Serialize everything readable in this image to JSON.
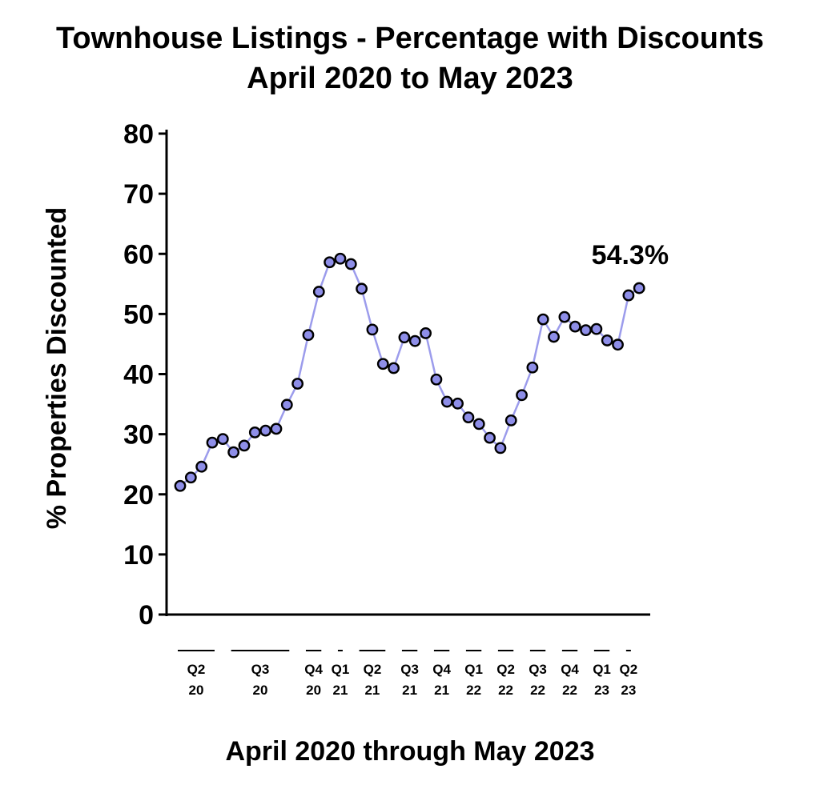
{
  "chart_data": {
    "type": "line",
    "title": [
      "Townhouse Listings - Percentage with Discounts",
      "April 2020 to May 2023"
    ],
    "ylabel": "% Properties Discounted",
    "xlabel": "April 2020 through May 2023",
    "ylim": [
      0,
      80
    ],
    "yticks": [
      "0",
      "10",
      "20",
      "30",
      "40",
      "50",
      "60",
      "70",
      "80"
    ],
    "grid": false,
    "legend": "none",
    "colors": {
      "line": "#9c9cec",
      "marker_fill": "#8e8ee8",
      "marker_edge": "#000000"
    },
    "quarters": [
      {
        "q": "Q2",
        "y": "20",
        "first": 0,
        "last": 3
      },
      {
        "q": "Q3",
        "y": "20",
        "first": 5,
        "last": 10
      },
      {
        "q": "Q4",
        "y": "20",
        "first": 12,
        "last": 13
      },
      {
        "q": "Q1",
        "y": "21",
        "first": 15,
        "last": 15
      },
      {
        "q": "Q2",
        "y": "21",
        "first": 17,
        "last": 19
      },
      {
        "q": "Q3",
        "y": "21",
        "first": 21,
        "last": 22
      },
      {
        "q": "Q4",
        "y": "21",
        "first": 24,
        "last": 25
      },
      {
        "q": "Q1",
        "y": "22",
        "first": 27,
        "last": 28
      },
      {
        "q": "Q2",
        "y": "22",
        "first": 30,
        "last": 31
      },
      {
        "q": "Q3",
        "y": "22",
        "first": 33,
        "last": 34
      },
      {
        "q": "Q4",
        "y": "22",
        "first": 36,
        "last": 37
      },
      {
        "q": "Q1",
        "y": "23",
        "first": 39,
        "last": 40
      },
      {
        "q": "Q2",
        "y": "23",
        "first": 42,
        "last": 42
      }
    ],
    "series": [
      {
        "values": [
          21.4,
          22.8,
          24.6,
          28.6,
          29.2,
          27.0,
          28.1,
          30.3,
          30.6,
          30.9,
          34.9,
          38.4,
          46.5,
          53.7,
          58.6,
          59.2,
          58.3,
          54.2,
          47.4,
          41.7,
          41.0,
          46.1,
          45.5,
          46.8,
          39.1,
          35.4,
          35.1,
          32.8,
          31.7,
          29.4,
          27.7,
          32.3,
          36.5,
          41.1,
          49.1,
          46.2,
          49.5,
          47.9,
          47.3,
          47.5,
          45.6,
          44.9,
          53.1,
          54.3
        ]
      }
    ],
    "annotation": "54.3%"
  }
}
